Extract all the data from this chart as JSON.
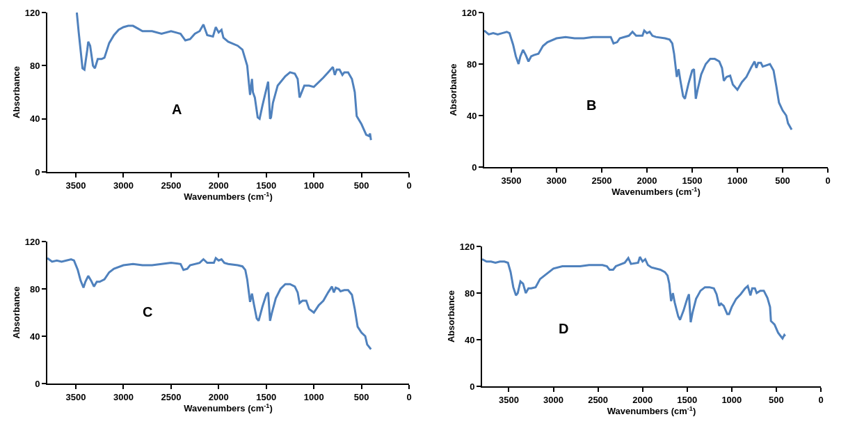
{
  "chart_data": [
    {
      "type": "line",
      "xlabel": "Wavenumbers (cm$^{-1}$)",
      "ylabel": "Absorbance",
      "annotations": [
        "A"
      ],
      "color": "#4f81bd",
      "xlim": [
        3800,
        0
      ],
      "xticks": [
        3500,
        3000,
        2500,
        2000,
        1500,
        1000,
        500,
        0
      ],
      "ylim": [
        0,
        120
      ],
      "yticks": [
        0,
        40,
        80,
        120
      ],
      "x": [
        3490,
        3470,
        3430,
        3410,
        3380,
        3370,
        3350,
        3320,
        3300,
        3270,
        3230,
        3200,
        3150,
        3100,
        3050,
        3000,
        2950,
        2900,
        2850,
        2800,
        2700,
        2600,
        2500,
        2400,
        2350,
        2300,
        2250,
        2200,
        2160,
        2120,
        2060,
        2030,
        2000,
        1970,
        1950,
        1900,
        1800,
        1750,
        1700,
        1680,
        1670,
        1650,
        1640,
        1620,
        1590,
        1570,
        1540,
        1500,
        1480,
        1460,
        1450,
        1430,
        1380,
        1300,
        1250,
        1200,
        1170,
        1150,
        1100,
        1050,
        1000,
        900,
        850,
        800,
        780,
        760,
        730,
        700,
        680,
        640,
        600,
        570,
        550,
        500,
        450,
        420,
        410,
        400
      ],
      "values": [
        120,
        105,
        78,
        77,
        92,
        98,
        95,
        80,
        78,
        85,
        85,
        86,
        97,
        103,
        107,
        109,
        110,
        110,
        108,
        106,
        106,
        104,
        106,
        104,
        99,
        100,
        104,
        106,
        111,
        103,
        102,
        109,
        105,
        107,
        101,
        98,
        95,
        92,
        80,
        65,
        58,
        70,
        60,
        56,
        41,
        40,
        50,
        62,
        68,
        40,
        41,
        52,
        65,
        72,
        75,
        74,
        70,
        56,
        65,
        65,
        64,
        71,
        75,
        79,
        73,
        77,
        77,
        73,
        75,
        75,
        70,
        60,
        42,
        36,
        28,
        27,
        29,
        24
      ]
    },
    {
      "type": "line",
      "xlabel": "Wavenumbers (cm$^{-1}$)",
      "ylabel": "Absorbance",
      "annotations": [
        "B"
      ],
      "color": "#4f81bd",
      "xlim": [
        3800,
        0
      ],
      "xticks": [
        3500,
        3000,
        2500,
        2000,
        1500,
        1000,
        500,
        0
      ],
      "ylim": [
        0,
        120
      ],
      "yticks": [
        0,
        40,
        80,
        120
      ],
      "x": [
        3800,
        3750,
        3700,
        3650,
        3600,
        3550,
        3520,
        3480,
        3450,
        3420,
        3400,
        3370,
        3340,
        3310,
        3280,
        3250,
        3200,
        3150,
        3100,
        3000,
        2900,
        2800,
        2700,
        2600,
        2500,
        2400,
        2370,
        2330,
        2300,
        2200,
        2160,
        2120,
        2050,
        2030,
        2000,
        1970,
        1940,
        1900,
        1800,
        1750,
        1720,
        1700,
        1670,
        1650,
        1630,
        1600,
        1580,
        1540,
        1500,
        1480,
        1460,
        1440,
        1400,
        1350,
        1300,
        1250,
        1200,
        1170,
        1150,
        1120,
        1080,
        1050,
        1000,
        950,
        900,
        850,
        810,
        790,
        770,
        740,
        720,
        680,
        640,
        600,
        570,
        540,
        500,
        460,
        440,
        400
      ],
      "values": [
        106,
        103,
        104,
        103,
        104,
        105,
        104,
        95,
        86,
        80,
        86,
        91,
        87,
        82,
        86,
        87,
        88,
        94,
        97,
        100,
        101,
        100,
        100,
        101,
        101,
        101,
        96,
        97,
        100,
        102,
        105,
        102,
        102,
        106,
        104,
        105,
        102,
        101,
        100,
        99,
        96,
        88,
        70,
        76,
        67,
        55,
        53,
        65,
        75,
        76,
        53,
        60,
        72,
        80,
        84,
        84,
        82,
        77,
        67,
        70,
        71,
        64,
        60,
        66,
        70,
        77,
        82,
        77,
        81,
        81,
        78,
        79,
        80,
        75,
        63,
        50,
        44,
        40,
        34,
        29
      ]
    },
    {
      "type": "line",
      "xlabel": "Wavenumbers (cm$^{-1}$)",
      "ylabel": "Absorbance",
      "annotations": [
        "C"
      ],
      "color": "#4f81bd",
      "xlim": [
        3800,
        0
      ],
      "xticks": [
        3500,
        3000,
        2500,
        2000,
        1500,
        1000,
        500,
        0
      ],
      "ylim": [
        0,
        120
      ],
      "yticks": [
        0,
        40,
        80,
        120
      ],
      "x": [
        3800,
        3750,
        3700,
        3650,
        3600,
        3550,
        3520,
        3480,
        3450,
        3420,
        3400,
        3370,
        3340,
        3310,
        3280,
        3250,
        3200,
        3150,
        3100,
        3000,
        2900,
        2800,
        2700,
        2600,
        2500,
        2400,
        2370,
        2330,
        2300,
        2200,
        2160,
        2120,
        2050,
        2030,
        2000,
        1970,
        1940,
        1900,
        1800,
        1750,
        1720,
        1700,
        1670,
        1650,
        1630,
        1600,
        1580,
        1540,
        1500,
        1480,
        1460,
        1440,
        1400,
        1350,
        1300,
        1250,
        1200,
        1170,
        1150,
        1120,
        1080,
        1050,
        1000,
        950,
        900,
        850,
        810,
        790,
        770,
        740,
        720,
        680,
        640,
        600,
        570,
        540,
        500,
        460,
        440,
        400
      ],
      "values": [
        106,
        103,
        104,
        103,
        104,
        105,
        104,
        96,
        87,
        81,
        86,
        91,
        87,
        82,
        86,
        86,
        88,
        94,
        97,
        100,
        101,
        100,
        100,
        101,
        102,
        101,
        96,
        97,
        100,
        102,
        105,
        102,
        102,
        106,
        104,
        105,
        102,
        101,
        100,
        99,
        96,
        88,
        69,
        76,
        67,
        55,
        53,
        65,
        75,
        77,
        53,
        60,
        72,
        80,
        84,
        84,
        82,
        77,
        68,
        70,
        70,
        63,
        60,
        66,
        70,
        77,
        82,
        77,
        81,
        80,
        78,
        79,
        79,
        75,
        63,
        48,
        43,
        40,
        33,
        29
      ]
    },
    {
      "type": "line",
      "xlabel": "Wavenumbers (cm$^{-1}$)",
      "ylabel": "Absorbance",
      "annotations": [
        "D"
      ],
      "color": "#4f81bd",
      "xlim": [
        3800,
        0
      ],
      "xticks": [
        3500,
        3000,
        2500,
        2000,
        1500,
        1000,
        500,
        0
      ],
      "ylim": [
        0,
        120
      ],
      "yticks": [
        0,
        40,
        80,
        120
      ],
      "x": [
        3800,
        3750,
        3700,
        3650,
        3600,
        3550,
        3510,
        3480,
        3450,
        3420,
        3400,
        3370,
        3340,
        3310,
        3280,
        3250,
        3200,
        3150,
        3100,
        3000,
        2900,
        2800,
        2700,
        2600,
        2450,
        2400,
        2370,
        2330,
        2300,
        2200,
        2160,
        2130,
        2050,
        2030,
        2000,
        1970,
        1940,
        1900,
        1800,
        1750,
        1720,
        1700,
        1680,
        1660,
        1640,
        1600,
        1580,
        1540,
        1500,
        1480,
        1460,
        1440,
        1400,
        1350,
        1300,
        1250,
        1200,
        1170,
        1140,
        1120,
        1090,
        1050,
        1030,
        1000,
        950,
        900,
        850,
        820,
        790,
        770,
        740,
        720,
        680,
        640,
        600,
        570,
        560,
        520,
        480,
        450,
        430,
        410,
        400
      ],
      "values": [
        109,
        107,
        107,
        106,
        107,
        107,
        106,
        98,
        85,
        78,
        80,
        90,
        88,
        80,
        84,
        84,
        85,
        92,
        95,
        101,
        103,
        103,
        103,
        104,
        104,
        103,
        100,
        100,
        103,
        106,
        110,
        105,
        106,
        111,
        107,
        109,
        104,
        102,
        100,
        98,
        95,
        88,
        73,
        80,
        72,
        60,
        57,
        65,
        75,
        79,
        55,
        63,
        75,
        82,
        85,
        85,
        84,
        79,
        69,
        71,
        69,
        62,
        62,
        68,
        75,
        79,
        84,
        86,
        78,
        84,
        84,
        80,
        82,
        82,
        76,
        68,
        56,
        53,
        46,
        43,
        41,
        44,
        43
      ]
    }
  ]
}
